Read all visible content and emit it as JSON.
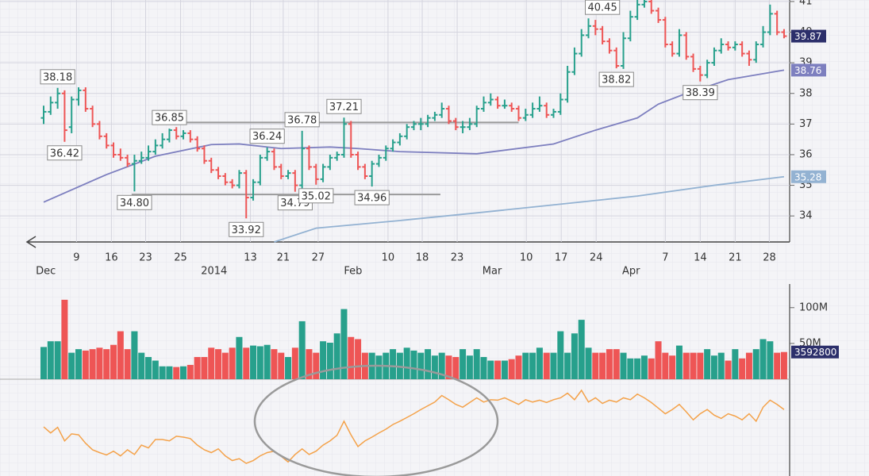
{
  "chart_data": [
    {
      "type": "ohlc",
      "up_color": "#27a08c",
      "down_color": "#ee5555",
      "xlim": [
        -6.25,
        106.8
      ],
      "ylim": [
        33.15,
        41.05
      ],
      "yticks": [
        34,
        35,
        36,
        37,
        38,
        39,
        40,
        41
      ],
      "grid": true,
      "xticks": [
        {
          "value": 4.7,
          "label": "9"
        },
        {
          "value": 9.7,
          "label": "16"
        },
        {
          "value": 14.6,
          "label": "23"
        },
        {
          "value": 19.6,
          "label": "25"
        },
        {
          "value": 29.6,
          "label": "13"
        },
        {
          "value": 34.3,
          "label": "21"
        },
        {
          "value": 39.3,
          "label": "27"
        },
        {
          "value": 49.3,
          "label": "10"
        },
        {
          "value": 54.2,
          "label": "18"
        },
        {
          "value": 59.2,
          "label": "23"
        },
        {
          "value": 69.1,
          "label": "10"
        },
        {
          "value": 74.1,
          "label": "17"
        },
        {
          "value": 79.1,
          "label": "24"
        },
        {
          "value": 89,
          "label": "7"
        },
        {
          "value": 94,
          "label": "14"
        },
        {
          "value": 99,
          "label": "21"
        },
        {
          "value": 103.9,
          "label": "28"
        }
      ],
      "xticks_months": [
        {
          "value": 0.3,
          "label": "Dec"
        },
        {
          "value": 24.4,
          "label": "2014"
        },
        {
          "value": 44.3,
          "label": "Feb"
        },
        {
          "value": 64.2,
          "label": "Mar"
        },
        {
          "value": 84.1,
          "label": "Apr"
        }
      ],
      "ohlc": [
        [
          37.2,
          37.6,
          37.0,
          37.4
        ],
        [
          37.4,
          37.9,
          37.3,
          37.7
        ],
        [
          37.7,
          38.18,
          37.5,
          38.0
        ],
        [
          38.0,
          38.1,
          36.42,
          36.8
        ],
        [
          36.9,
          37.9,
          36.7,
          37.8
        ],
        [
          37.8,
          38.2,
          37.6,
          38.1
        ],
        [
          38.1,
          38.2,
          37.4,
          37.5
        ],
        [
          37.5,
          37.6,
          36.9,
          37.0
        ],
        [
          37.0,
          37.1,
          36.5,
          36.6
        ],
        [
          36.6,
          36.7,
          36.2,
          36.3
        ],
        [
          36.3,
          36.4,
          35.9,
          36.0
        ],
        [
          36.0,
          36.2,
          35.8,
          35.9
        ],
        [
          35.9,
          36.0,
          35.6,
          35.7
        ],
        [
          35.7,
          36.0,
          34.8,
          35.8
        ],
        [
          35.8,
          36.1,
          35.7,
          35.9
        ],
        [
          35.9,
          36.3,
          35.8,
          36.1
        ],
        [
          36.1,
          36.5,
          36.0,
          36.3
        ],
        [
          36.3,
          36.7,
          36.2,
          36.5
        ],
        [
          36.5,
          36.85,
          36.4,
          36.8
        ],
        [
          36.8,
          36.9,
          36.5,
          36.6
        ],
        [
          36.6,
          36.8,
          36.5,
          36.7
        ],
        [
          36.7,
          36.8,
          36.4,
          36.5
        ],
        [
          36.5,
          36.6,
          36.1,
          36.2
        ],
        [
          36.2,
          36.3,
          35.7,
          35.8
        ],
        [
          35.8,
          35.9,
          35.4,
          35.5
        ],
        [
          35.5,
          35.6,
          35.2,
          35.3
        ],
        [
          35.3,
          35.4,
          35.0,
          35.1
        ],
        [
          35.1,
          35.2,
          34.9,
          35.0
        ],
        [
          35.0,
          35.5,
          34.9,
          35.4
        ],
        [
          35.4,
          35.5,
          33.92,
          34.6
        ],
        [
          34.6,
          35.2,
          34.5,
          35.1
        ],
        [
          35.1,
          36.0,
          35.0,
          35.9
        ],
        [
          35.9,
          36.24,
          35.8,
          36.1
        ],
        [
          36.1,
          36.2,
          35.5,
          35.6
        ],
        [
          35.6,
          35.7,
          35.2,
          35.3
        ],
        [
          35.3,
          35.5,
          35.2,
          35.4
        ],
        [
          35.4,
          35.5,
          34.79,
          35.0
        ],
        [
          35.0,
          36.78,
          34.9,
          36.2
        ],
        [
          36.2,
          36.3,
          35.5,
          35.6
        ],
        [
          35.6,
          35.7,
          35.02,
          35.2
        ],
        [
          35.2,
          35.7,
          35.1,
          35.6
        ],
        [
          35.6,
          36.0,
          35.5,
          35.9
        ],
        [
          35.9,
          36.1,
          35.8,
          36.0
        ],
        [
          36.0,
          37.21,
          35.9,
          37.0
        ],
        [
          37.0,
          37.1,
          35.9,
          36.0
        ],
        [
          36.0,
          36.1,
          35.5,
          35.6
        ],
        [
          35.6,
          35.7,
          35.2,
          35.3
        ],
        [
          35.3,
          35.8,
          34.96,
          35.7
        ],
        [
          35.7,
          36.0,
          35.6,
          35.9
        ],
        [
          35.9,
          36.3,
          35.8,
          36.2
        ],
        [
          36.2,
          36.5,
          36.1,
          36.4
        ],
        [
          36.4,
          36.7,
          36.3,
          36.6
        ],
        [
          36.6,
          37.0,
          36.5,
          36.9
        ],
        [
          36.9,
          37.1,
          36.8,
          37.0
        ],
        [
          37.0,
          37.2,
          36.8,
          37.0
        ],
        [
          37.0,
          37.3,
          36.9,
          37.2
        ],
        [
          37.2,
          37.4,
          37.1,
          37.3
        ],
        [
          37.3,
          37.7,
          37.2,
          37.5
        ],
        [
          37.5,
          37.6,
          37.0,
          37.1
        ],
        [
          37.1,
          37.2,
          36.8,
          36.9
        ],
        [
          36.9,
          37.1,
          36.7,
          36.9
        ],
        [
          36.9,
          37.2,
          36.8,
          37.0
        ],
        [
          37.0,
          37.6,
          36.9,
          37.5
        ],
        [
          37.5,
          37.9,
          37.4,
          37.7
        ],
        [
          37.7,
          38.0,
          37.6,
          37.8
        ],
        [
          37.8,
          37.9,
          37.5,
          37.6
        ],
        [
          37.6,
          37.8,
          37.5,
          37.6
        ],
        [
          37.6,
          37.7,
          37.4,
          37.5
        ],
        [
          37.5,
          37.6,
          37.1,
          37.2
        ],
        [
          37.2,
          37.5,
          37.1,
          37.3
        ],
        [
          37.3,
          37.7,
          37.2,
          37.5
        ],
        [
          37.5,
          37.9,
          37.4,
          37.6
        ],
        [
          37.6,
          37.7,
          37.2,
          37.3
        ],
        [
          37.3,
          37.5,
          37.2,
          37.4
        ],
        [
          37.4,
          38.0,
          37.3,
          37.8
        ],
        [
          37.8,
          38.9,
          37.7,
          38.7
        ],
        [
          38.7,
          39.5,
          38.6,
          39.3
        ],
        [
          39.3,
          40.1,
          39.2,
          39.9
        ],
        [
          39.9,
          40.45,
          39.8,
          40.2
        ],
        [
          40.2,
          40.4,
          39.9,
          40.1
        ],
        [
          40.1,
          40.2,
          39.6,
          39.7
        ],
        [
          39.7,
          39.8,
          39.3,
          39.4
        ],
        [
          39.4,
          39.5,
          38.82,
          38.9
        ],
        [
          38.9,
          40.0,
          38.8,
          39.8
        ],
        [
          39.8,
          40.7,
          39.7,
          40.5
        ],
        [
          40.5,
          41.1,
          40.4,
          40.9
        ],
        [
          40.9,
          41.2,
          40.8,
          41.0
        ],
        [
          41.0,
          41.1,
          40.6,
          40.7
        ],
        [
          40.7,
          40.8,
          40.3,
          40.4
        ],
        [
          40.4,
          40.5,
          39.5,
          39.6
        ],
        [
          39.6,
          39.7,
          39.2,
          39.3
        ],
        [
          39.3,
          40.1,
          39.2,
          39.9
        ],
        [
          39.9,
          40.0,
          39.1,
          39.2
        ],
        [
          39.2,
          39.3,
          38.7,
          38.8
        ],
        [
          38.8,
          38.9,
          38.39,
          38.6
        ],
        [
          38.6,
          39.1,
          38.5,
          39.0
        ],
        [
          39.0,
          39.5,
          38.9,
          39.4
        ],
        [
          39.4,
          39.8,
          39.3,
          39.6
        ],
        [
          39.6,
          39.7,
          39.4,
          39.5
        ],
        [
          39.5,
          39.7,
          39.4,
          39.6
        ],
        [
          39.6,
          39.7,
          39.2,
          39.3
        ],
        [
          39.3,
          39.4,
          38.9,
          39.1
        ],
        [
          39.1,
          39.7,
          39.0,
          39.6
        ],
        [
          39.6,
          40.2,
          39.5,
          40.0
        ],
        [
          40.0,
          40.9,
          39.9,
          40.6
        ],
        [
          40.6,
          40.7,
          39.9,
          40.0
        ],
        [
          40.0,
          40.1,
          39.8,
          39.87
        ]
      ],
      "last_color": "#2c2f6b",
      "moving_averages": [
        {
          "color": "#7d7fbf",
          "x": [
            0,
            9,
            16,
            24,
            28,
            34,
            41,
            45,
            51,
            62,
            73,
            79,
            85,
            88,
            92,
            98,
            106
          ],
          "values": [
            34.45,
            35.35,
            35.95,
            36.33,
            36.35,
            36.2,
            36.25,
            36.2,
            36.1,
            36.03,
            36.35,
            36.8,
            37.2,
            37.65,
            38.0,
            38.45,
            38.76
          ]
        },
        {
          "color": "#93b2d2",
          "x": [
            33,
            39,
            51,
            62,
            73,
            85,
            96,
            106
          ],
          "values": [
            33.15,
            33.6,
            33.85,
            34.1,
            34.36,
            34.65,
            35.0,
            35.28
          ]
        }
      ],
      "levels": [
        {
          "value": 37.05,
          "x": [
            16,
            68
          ]
        },
        {
          "value": 34.7,
          "x": [
            12.6,
            56.8
          ]
        }
      ],
      "annotations": [
        {
          "value": 38.18,
          "x": 2,
          "position": "above"
        },
        {
          "value": 36.42,
          "x": 3,
          "position": "below"
        },
        {
          "value": 36.85,
          "x": 18,
          "position": "above"
        },
        {
          "value": 34.8,
          "label": "34.80",
          "x": 13,
          "position": "below"
        },
        {
          "value": 36.24,
          "x": 32,
          "position": "above"
        },
        {
          "value": 33.92,
          "x": 29,
          "position": "below"
        },
        {
          "value": 36.78,
          "x": 37,
          "position": "above"
        },
        {
          "value": 34.79,
          "x": 36,
          "position": "below"
        },
        {
          "value": 37.21,
          "x": 43,
          "position": "above"
        },
        {
          "value": 35.02,
          "x": 39,
          "position": "below"
        },
        {
          "value": 34.96,
          "x": 47,
          "position": "below"
        },
        {
          "value": 40.45,
          "x": 80,
          "position": "above"
        },
        {
          "value": 38.82,
          "x": 82,
          "position": "below"
        },
        {
          "value": 38.39,
          "x": 94,
          "position": "below"
        }
      ]
    },
    {
      "type": "bar",
      "ylim": [
        0,
        133
      ],
      "yticks": [
        {
          "value": 50,
          "label": "50M"
        },
        {
          "value": 100,
          "label": "100M"
        }
      ],
      "values": [
        45,
        53,
        53,
        111,
        37,
        42,
        40,
        42,
        44,
        42,
        48,
        67,
        42,
        67,
        37,
        31,
        26,
        18,
        18,
        17,
        18,
        20,
        31,
        31,
        44,
        42,
        37,
        44,
        59,
        44,
        47,
        46,
        48,
        42,
        37,
        31,
        44,
        81,
        42,
        37,
        53,
        51,
        64,
        98,
        59,
        56,
        37,
        37,
        33,
        37,
        42,
        37,
        44,
        40,
        37,
        42,
        33,
        37,
        33,
        31,
        42,
        33,
        42,
        31,
        26,
        26,
        26,
        28,
        33,
        37,
        37,
        44,
        37,
        37,
        67,
        37,
        64,
        83,
        44,
        37,
        37,
        42,
        42,
        37,
        29,
        29,
        33,
        29,
        53,
        37,
        33,
        47,
        37,
        37,
        37,
        42,
        33,
        37,
        26,
        42,
        29,
        37,
        42,
        56,
        53,
        37,
        38
      ],
      "last_label": "3592800",
      "last_color": "#2c2f6b"
    },
    {
      "type": "line",
      "color": "#f4a24a",
      "ylim": [
        0,
        100
      ],
      "values": [
        52.5,
        46,
        52,
        37.5,
        45,
        44,
        35,
        28,
        25,
        22.5,
        26.5,
        21.5,
        28,
        23,
        33,
        30,
        39,
        39,
        37.5,
        42.5,
        41.5,
        40,
        33,
        28,
        25,
        29,
        21.5,
        16.5,
        18.5,
        13.5,
        16.5,
        21.5,
        25,
        26.5,
        21,
        15,
        23,
        29,
        23,
        26.5,
        33,
        37.5,
        43.5,
        58.5,
        44,
        31.5,
        37.5,
        41.5,
        46,
        50,
        55,
        58.5,
        62.5,
        66.5,
        71,
        75,
        79,
        86,
        81.5,
        76.5,
        73.5,
        78.5,
        83.5,
        79,
        81.5,
        81,
        83.5,
        80,
        76.5,
        81.5,
        79,
        81,
        78.5,
        81.5,
        83.5,
        88.5,
        81.5,
        91.5,
        79,
        83.5,
        77.5,
        81,
        79,
        83.5,
        81.5,
        87.5,
        83.5,
        78.5,
        72.5,
        66.5,
        71,
        76.5,
        68.5,
        60,
        66.5,
        71,
        65,
        61.5,
        66.5,
        64,
        60,
        66.5,
        58.5,
        73.5,
        81,
        76.5,
        71
      ]
    }
  ]
}
